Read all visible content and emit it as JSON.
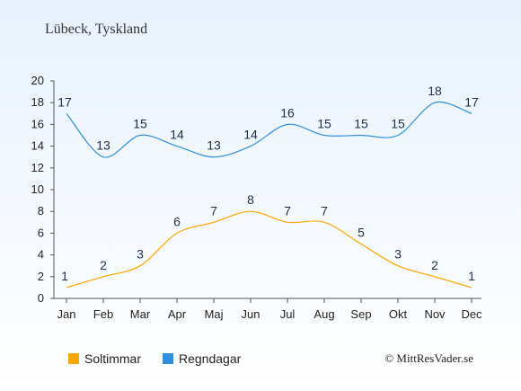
{
  "chart_data": {
    "type": "line",
    "title": "Lübeck, Tyskland",
    "categories": [
      "Jan",
      "Feb",
      "Mar",
      "Apr",
      "Maj",
      "Jun",
      "Jul",
      "Aug",
      "Sep",
      "Okt",
      "Nov",
      "Dec"
    ],
    "yticks": [
      "0",
      "2",
      "4",
      "6",
      "8",
      "10",
      "12",
      "14",
      "16",
      "18",
      "20"
    ],
    "ylim": [
      0,
      20
    ],
    "grid": false,
    "legend_position": "bottom-left",
    "series": [
      {
        "name": "Soltimmar",
        "color": "#ffa500",
        "values": [
          1,
          2,
          3,
          6,
          7,
          8,
          7,
          7,
          5,
          3,
          2,
          1
        ]
      },
      {
        "name": "Regndagar",
        "color": "#2f8fde",
        "values": [
          17,
          13,
          15,
          14,
          13,
          14,
          16,
          15,
          15,
          15,
          18,
          17
        ]
      }
    ],
    "credit": "© MittResVader.se"
  }
}
